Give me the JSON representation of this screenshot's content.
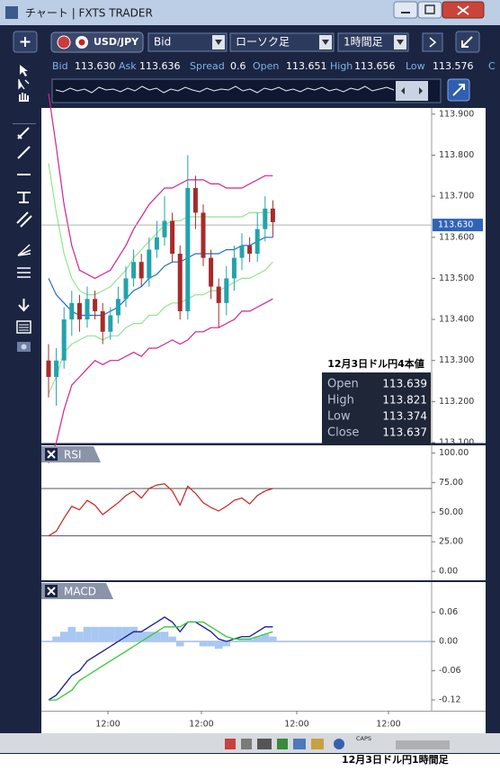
{
  "window": {
    "title": "チャート | FXTS TRADER"
  },
  "toolbar": {
    "symbol": "USD/JPY",
    "price_type": "Bid",
    "chart_type": "ローソク足",
    "timeframe": "1時間足"
  },
  "quote": [
    {
      "label": "Bid",
      "value": "113.630"
    },
    {
      "label": "Ask",
      "value": "113.636"
    },
    {
      "label": "Spread",
      "value": "0.6"
    },
    {
      "label": "Open",
      "value": "113.651"
    },
    {
      "label": "High",
      "value": "113.656"
    },
    {
      "label": "Low",
      "value": "113.576"
    },
    {
      "label": "C"
    }
  ],
  "tooltip": {
    "title": "12月3日ドル円4本値",
    "rows": [
      [
        "Open",
        "113.639"
      ],
      [
        "High",
        "113.821"
      ],
      [
        "Low",
        "113.374"
      ],
      [
        "Close",
        "113.637"
      ]
    ]
  },
  "chart_data": [
    {
      "type": "candlestick",
      "up_color": "#23a3ab",
      "down_color": "#a82a2a",
      "open": [
        113.3,
        113.26,
        113.3,
        113.4,
        113.44,
        113.4,
        113.45,
        113.42,
        113.37,
        113.41,
        113.45,
        113.5,
        113.54,
        113.5,
        113.57,
        113.6,
        113.64,
        113.56,
        113.42,
        113.72,
        113.66,
        113.55,
        113.48,
        113.44,
        113.5,
        113.55,
        113.58,
        113.56,
        113.62,
        113.67
      ],
      "high": [
        113.34,
        113.33,
        113.43,
        113.47,
        113.46,
        113.48,
        113.47,
        113.44,
        113.43,
        113.48,
        113.53,
        113.57,
        113.56,
        113.6,
        113.64,
        113.7,
        113.66,
        113.58,
        113.8,
        113.75,
        113.68,
        113.57,
        113.5,
        113.53,
        113.58,
        113.61,
        113.6,
        113.66,
        113.7,
        113.69
      ],
      "low": [
        113.21,
        113.19,
        113.28,
        113.36,
        113.37,
        113.38,
        113.4,
        113.34,
        113.35,
        113.39,
        113.43,
        113.48,
        113.48,
        113.48,
        113.55,
        113.58,
        113.54,
        113.4,
        113.4,
        113.62,
        113.53,
        113.45,
        113.38,
        113.41,
        113.47,
        113.52,
        113.54,
        113.54,
        113.59,
        113.6
      ],
      "close": [
        113.26,
        113.3,
        113.4,
        113.44,
        113.4,
        113.45,
        113.42,
        113.37,
        113.41,
        113.45,
        113.5,
        113.54,
        113.5,
        113.57,
        113.6,
        113.64,
        113.56,
        113.42,
        113.72,
        113.66,
        113.55,
        113.48,
        113.44,
        113.5,
        113.55,
        113.58,
        113.56,
        113.62,
        113.67,
        113.637
      ],
      "overlays": [
        {
          "color": "#d4228f",
          "values": [
            113.95,
            113.82,
            113.68,
            113.58,
            113.52,
            113.51,
            113.5,
            113.51,
            113.52,
            113.55,
            113.58,
            113.62,
            113.65,
            113.68,
            113.7,
            113.72,
            113.72,
            113.73,
            113.74,
            113.74,
            113.74,
            113.73,
            113.73,
            113.72,
            113.72,
            113.72,
            113.73,
            113.74,
            113.75,
            113.75
          ]
        },
        {
          "color": "#8fe68f",
          "values": [
            113.78,
            113.66,
            113.56,
            113.5,
            113.47,
            113.46,
            113.46,
            113.47,
            113.48,
            113.5,
            113.52,
            113.55,
            113.57,
            113.59,
            113.61,
            113.63,
            113.64,
            113.64,
            113.65,
            113.65,
            113.65,
            113.65,
            113.65,
            113.65,
            113.65,
            113.65,
            113.66,
            113.66,
            113.66,
            113.66
          ]
        },
        {
          "color": "#1f6fc4",
          "values": [
            113.5,
            113.46,
            113.44,
            113.42,
            113.41,
            113.41,
            113.41,
            113.41,
            113.42,
            113.43,
            113.45,
            113.47,
            113.48,
            113.5,
            113.51,
            113.53,
            113.54,
            113.54,
            113.55,
            113.56,
            113.56,
            113.56,
            113.56,
            113.57,
            113.57,
            113.58,
            113.58,
            113.59,
            113.6,
            113.6
          ]
        },
        {
          "color": "#8fe68f",
          "values": [
            113.22,
            113.26,
            113.32,
            113.34,
            113.35,
            113.36,
            113.36,
            113.35,
            113.36,
            113.36,
            113.38,
            113.39,
            113.39,
            113.41,
            113.41,
            113.43,
            113.44,
            113.44,
            113.45,
            113.46,
            113.46,
            113.47,
            113.47,
            113.48,
            113.49,
            113.5,
            113.5,
            113.51,
            113.52,
            113.54
          ]
        },
        {
          "color": "#d4228f",
          "values": [
            113.05,
            113.1,
            113.18,
            113.24,
            113.26,
            113.28,
            113.3,
            113.29,
            113.3,
            113.3,
            113.31,
            113.32,
            113.31,
            113.33,
            113.33,
            113.34,
            113.35,
            113.34,
            113.35,
            113.37,
            113.37,
            113.38,
            113.38,
            113.39,
            113.4,
            113.42,
            113.42,
            113.43,
            113.44,
            113.45
          ]
        }
      ],
      "last_price": {
        "value": 113.63,
        "label": "113.630"
      },
      "ylim": [
        113.1,
        113.915
      ],
      "yticks": [
        {
          "value": 113.9,
          "label": "113.900"
        },
        {
          "value": 113.8,
          "label": "113.800"
        },
        {
          "value": 113.7,
          "label": "113.700"
        },
        {
          "value": 113.6,
          "label": "113.600"
        },
        {
          "value": 113.5,
          "label": "113.500"
        },
        {
          "value": 113.4,
          "label": "113.400"
        },
        {
          "value": 113.3,
          "label": "113.300"
        },
        {
          "value": 113.2,
          "label": "113.200"
        },
        {
          "value": 113.1,
          "label": "113.100"
        }
      ]
    },
    {
      "type": "line",
      "title": "RSI",
      "color": "#cc2020",
      "values": [
        30,
        34,
        45,
        55,
        52,
        60,
        56,
        48,
        53,
        58,
        64,
        68,
        62,
        70,
        73,
        74,
        68,
        56,
        72,
        66,
        58,
        54,
        51,
        55,
        60,
        62,
        57,
        64,
        68,
        70
      ],
      "levels": [
        70,
        30
      ],
      "ylim": [
        -6,
        105
      ],
      "yticks": [
        {
          "value": 100,
          "label": "100.00"
        },
        {
          "value": 75,
          "label": "75.00"
        },
        {
          "value": 50,
          "label": "50.00"
        },
        {
          "value": 25,
          "label": "25.00"
        },
        {
          "value": 0,
          "label": "0.00"
        }
      ]
    },
    {
      "type": "macd",
      "title": "MACD",
      "series": [
        {
          "style": "bar",
          "color": "#a8c8f2",
          "values": [
            0.0,
            0.01,
            0.02,
            0.03,
            0.02,
            0.03,
            0.03,
            0.03,
            0.03,
            0.03,
            0.03,
            0.03,
            0.02,
            0.02,
            0.02,
            0.02,
            0.01,
            -0.01,
            0.0,
            0.0,
            -0.01,
            -0.01,
            -0.015,
            -0.01,
            0.0,
            0.005,
            0.005,
            0.01,
            0.015,
            0.01
          ]
        },
        {
          "style": "line",
          "color": "#1a1a9c",
          "values": [
            -0.12,
            -0.11,
            -0.09,
            -0.07,
            -0.06,
            -0.04,
            -0.03,
            -0.02,
            -0.01,
            0.0,
            0.01,
            0.02,
            0.02,
            0.03,
            0.04,
            0.05,
            0.04,
            0.02,
            0.04,
            0.04,
            0.03,
            0.02,
            0.005,
            0.0,
            0.005,
            0.01,
            0.01,
            0.02,
            0.03,
            0.03
          ]
        },
        {
          "style": "line",
          "color": "#33cc33",
          "values": [
            -0.12,
            -0.12,
            -0.11,
            -0.1,
            -0.08,
            -0.07,
            -0.06,
            -0.05,
            -0.04,
            -0.03,
            -0.02,
            -0.01,
            0.0,
            0.01,
            0.02,
            0.03,
            0.03,
            0.03,
            0.04,
            0.04,
            0.04,
            0.03,
            0.02,
            0.01,
            0.005,
            0.005,
            0.005,
            0.01,
            0.015,
            0.02
          ]
        }
      ],
      "ylim": [
        -0.142,
        0.12
      ],
      "yticks": [
        0.06,
        {
          "value": 0,
          "label": "0.00"
        },
        -0.06,
        -0.12
      ]
    }
  ],
  "time_axis": {
    "labels": [
      "12:00",
      "12:00",
      "12:00",
      "12:00"
    ]
  },
  "status_bar": {
    "caps": "CAPS"
  },
  "caption": "12月3日ドル円1時間足"
}
